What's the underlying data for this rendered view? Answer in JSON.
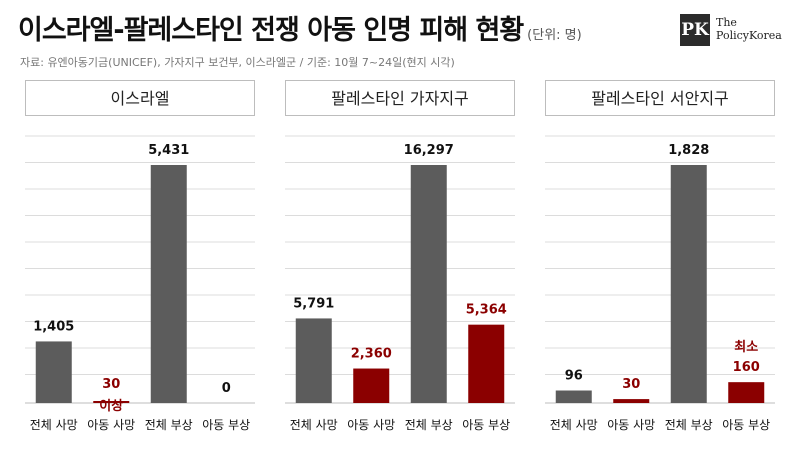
{
  "header": {
    "title": "이스라엘-팔레스타인 전쟁 아동 인명 피해 현황",
    "unit": "(단위: 명)",
    "source": "자료: 유엔아동기금(UNICEF),  가자지구 보건부, 이스라엘군  / 기준: 10월 7~24일(현지 시각)"
  },
  "logo": {
    "mark": "PK",
    "line1": "The",
    "line2": "PolicyKorea"
  },
  "colors": {
    "gray": "#5c5c5c",
    "red": "#8b0000",
    "grid": "#dcdcdc"
  },
  "chart_data": [
    {
      "type": "bar",
      "title": "이스라엘",
      "categories": [
        "전체 사망",
        "아동 사망",
        "전체 부상",
        "아동 부상"
      ],
      "values": [
        1405,
        30,
        5431,
        0
      ],
      "value_labels": [
        "1,405",
        "30",
        "5,431",
        "0"
      ],
      "label_colors": [
        "#111111",
        "#8b0000",
        "#111111",
        "#111111"
      ],
      "bar_colors": [
        "#5c5c5c",
        "#8b0000",
        "#5c5c5c",
        "#8b0000"
      ],
      "annotations": [
        {
          "category": "아동 사망",
          "text": "이상",
          "position": "below"
        }
      ]
    },
    {
      "type": "bar",
      "title": "팔레스타인 가자지구",
      "categories": [
        "전체 사망",
        "아동 사망",
        "전체 부상",
        "아동 부상"
      ],
      "values": [
        5791,
        2360,
        16297,
        5364
      ],
      "value_labels": [
        "5,791",
        "2,360",
        "16,297",
        "5,364"
      ],
      "label_colors": [
        "#111111",
        "#8b0000",
        "#111111",
        "#8b0000"
      ],
      "bar_colors": [
        "#5c5c5c",
        "#8b0000",
        "#5c5c5c",
        "#8b0000"
      ],
      "annotations": []
    },
    {
      "type": "bar",
      "title": "팔레스타인 서안지구",
      "categories": [
        "전체 사망",
        "아동 사망",
        "전체 부상",
        "아동 부상"
      ],
      "values": [
        96,
        30,
        1828,
        160
      ],
      "value_labels": [
        "96",
        "30",
        "1,828",
        "160"
      ],
      "label_colors": [
        "#111111",
        "#8b0000",
        "#111111",
        "#8b0000"
      ],
      "bar_colors": [
        "#5c5c5c",
        "#8b0000",
        "#5c5c5c",
        "#8b0000"
      ],
      "annotations": [
        {
          "category": "아동 부상",
          "text": "최소",
          "position": "above"
        }
      ]
    }
  ]
}
